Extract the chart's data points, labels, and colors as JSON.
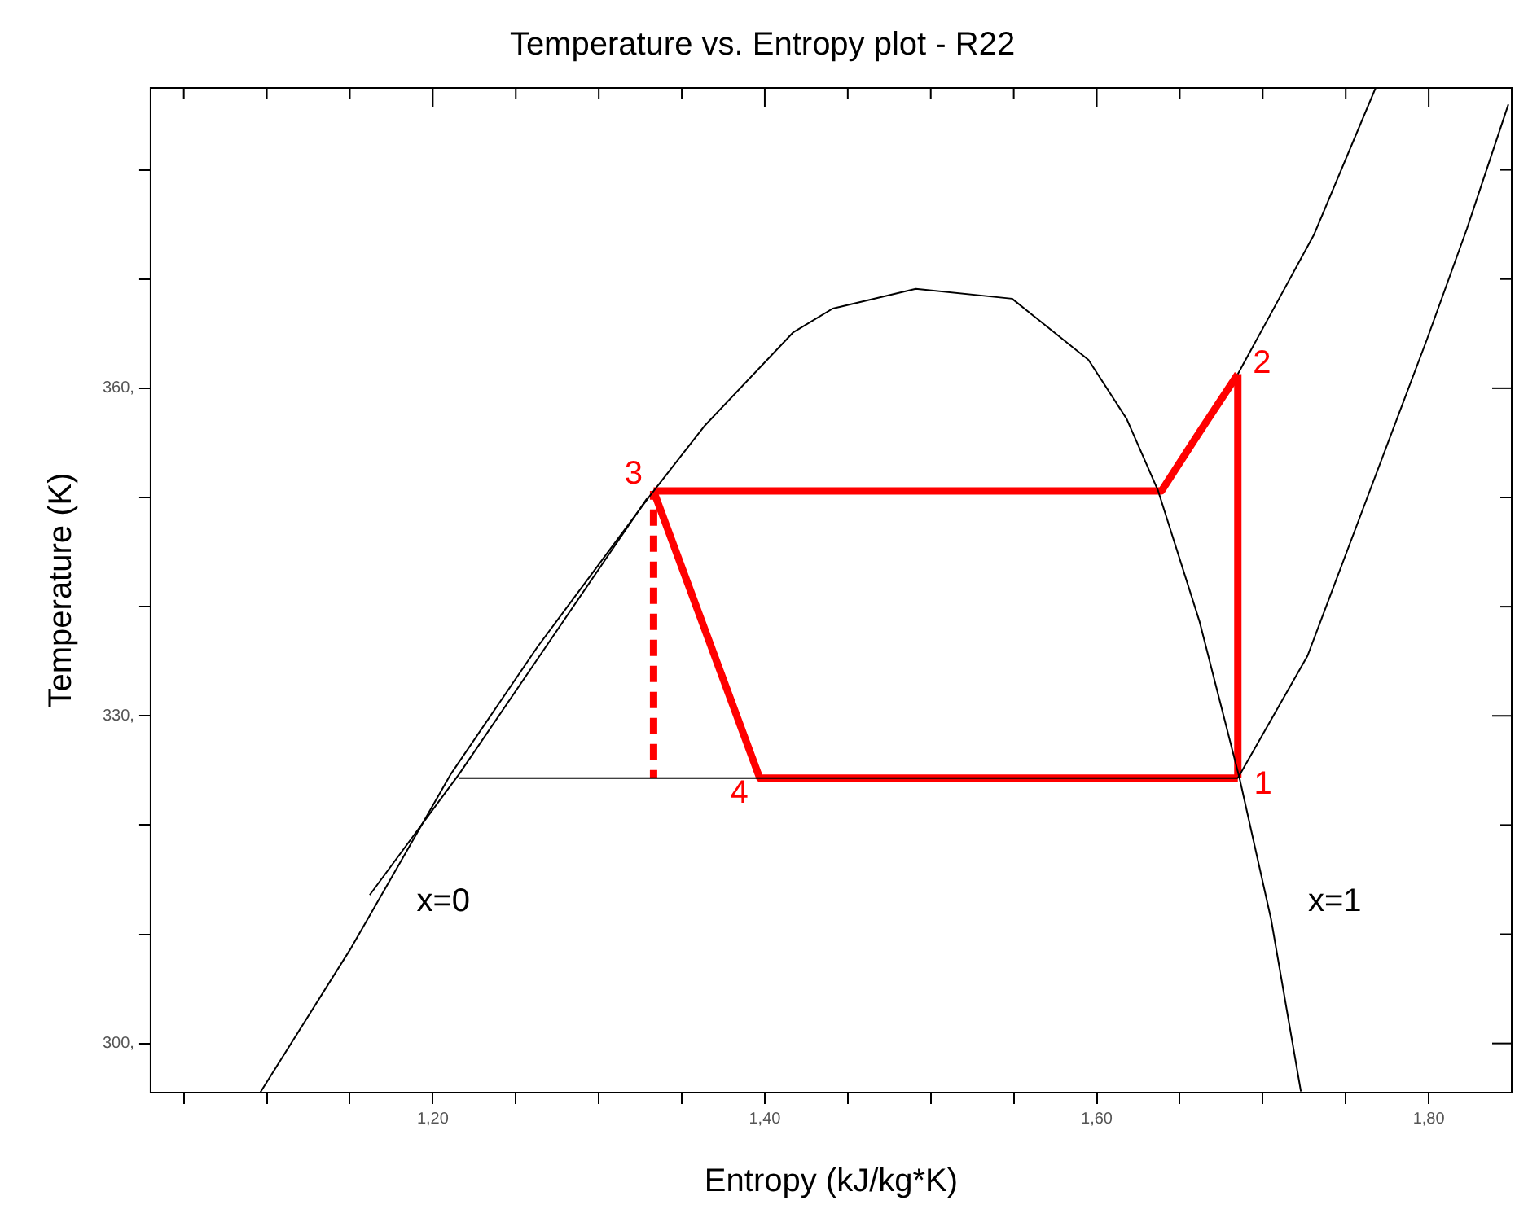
{
  "chart_data": {
    "type": "line",
    "title": "Temperature vs. Entropy plot - R22",
    "xlabel": "Entropy (kJ/kg*K)",
    "ylabel": "Temperature (K)",
    "xlim": [
      1.03,
      1.85
    ],
    "ylim": [
      295.5,
      387.5
    ],
    "xticks": [
      {
        "value": 1.05,
        "label": null
      },
      {
        "value": 1.1,
        "label": null
      },
      {
        "value": 1.15,
        "label": null
      },
      {
        "value": 1.2,
        "label": "1,20"
      },
      {
        "value": 1.25,
        "label": null
      },
      {
        "value": 1.3,
        "label": null
      },
      {
        "value": 1.35,
        "label": null
      },
      {
        "value": 1.4,
        "label": "1,40"
      },
      {
        "value": 1.45,
        "label": null
      },
      {
        "value": 1.5,
        "label": null
      },
      {
        "value": 1.55,
        "label": null
      },
      {
        "value": 1.6,
        "label": "1,60"
      },
      {
        "value": 1.65,
        "label": null
      },
      {
        "value": 1.7,
        "label": null
      },
      {
        "value": 1.75,
        "label": null
      },
      {
        "value": 1.8,
        "label": "1,80"
      }
    ],
    "yticks": [
      {
        "value": 300,
        "label": "300,"
      },
      {
        "value": 310,
        "label": null
      },
      {
        "value": 320,
        "label": null
      },
      {
        "value": 330,
        "label": "330,"
      },
      {
        "value": 340,
        "label": null
      },
      {
        "value": 350,
        "label": null
      },
      {
        "value": 360,
        "label": "360,"
      },
      {
        "value": 370,
        "label": null
      },
      {
        "value": 380,
        "label": null
      }
    ],
    "marker": "none",
    "legend": false,
    "series": [
      {
        "color": "#000000",
        "line_style": "solid",
        "x": [
          1.096,
          1.151,
          1.211,
          1.263,
          1.331,
          1.364,
          1.417,
          1.441,
          1.491,
          1.549,
          1.595,
          1.618,
          1.637,
          1.662,
          1.686,
          1.705,
          1.723
        ],
        "values": [
          295.5,
          308.8,
          324.7,
          336.3,
          350.2,
          356.6,
          365.1,
          367.3,
          369.1,
          368.2,
          362.6,
          357.2,
          350.6,
          338.6,
          324.3,
          311.4,
          295.6
        ]
      },
      {
        "color": "#000000",
        "line_style": "solid",
        "x": [
          1.162,
          1.216,
          1.268,
          1.329
        ],
        "values": [
          313.6,
          324.7,
          336.3,
          349.9
        ]
      },
      {
        "color": "#000000",
        "line_style": "solid",
        "x": [
          1.216,
          1.685
        ],
        "values": [
          324.3,
          324.3
        ]
      },
      {
        "color": "#000000",
        "line_style": "solid",
        "x": [
          1.685,
          1.703,
          1.731,
          1.768
        ],
        "values": [
          361.3,
          366.3,
          374.1,
          387.5
        ]
      },
      {
        "color": "#000000",
        "line_style": "solid",
        "x": [
          1.685,
          1.727,
          1.763,
          1.799,
          1.823,
          1.848
        ],
        "values": [
          324.3,
          335.5,
          350.0,
          364.5,
          374.6,
          386.0
        ]
      },
      {
        "color": "#ff0000",
        "line_style": "dashed",
        "x": [
          1.333,
          1.333
        ],
        "values": [
          350.6,
          324.3
        ]
      },
      {
        "color": "#ff0000",
        "line_style": "solid",
        "x": [
          1.333,
          1.639,
          1.662,
          1.685
        ],
        "values": [
          350.6,
          350.6,
          356.0,
          361.3
        ]
      },
      {
        "color": "#ff0000",
        "line_style": "solid",
        "x": [
          1.685,
          1.685
        ],
        "values": [
          324.3,
          361.3
        ]
      },
      {
        "color": "#ff0000",
        "line_style": "solid",
        "x": [
          1.333,
          1.397,
          1.685
        ],
        "values": [
          350.6,
          324.3,
          324.3
        ]
      }
    ],
    "annotations": [
      {
        "text": "1",
        "x": 1.685,
        "y": 324.3
      },
      {
        "text": "2",
        "x": 1.685,
        "y": 361.3
      },
      {
        "text": "3",
        "x": 1.333,
        "y": 350.6
      },
      {
        "text": "4",
        "x": 1.397,
        "y": 324.3
      },
      "x=0",
      "x=1"
    ]
  }
}
